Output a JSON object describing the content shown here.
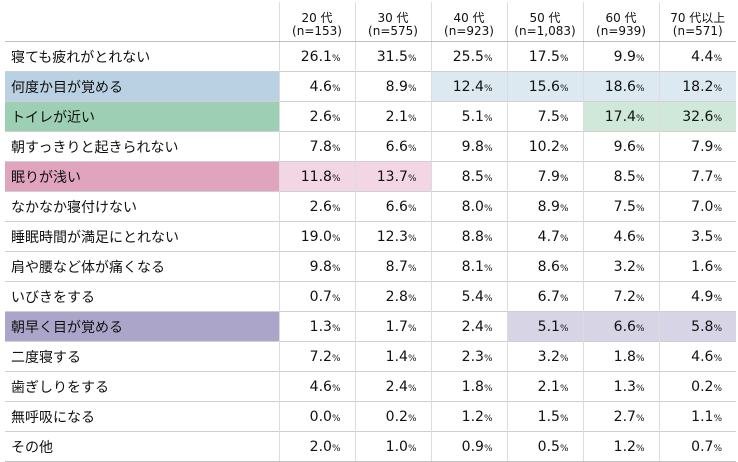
{
  "headers": [
    {
      "age": "20 代",
      "n": "(n=153)"
    },
    {
      "age": "30 代",
      "n": "(n=575)"
    },
    {
      "age": "40 代",
      "n": "(n=923)"
    },
    {
      "age": "50 代",
      "n": "(n=1,083)"
    },
    {
      "age": "60 代",
      "n": "(n=939)"
    },
    {
      "age": "70 代以上",
      "n": "(n=571)"
    }
  ],
  "rows": [
    {
      "label": "寝ても疲れがとれない",
      "values": [
        "26.1",
        "31.5",
        "25.5",
        "17.5",
        "9.9",
        "4.4"
      ]
    },
    {
      "label": "何度か目が覚める",
      "values": [
        "4.6",
        "8.9",
        "12.4",
        "15.6",
        "18.6",
        "18.2"
      ]
    },
    {
      "label": "トイレが近い",
      "values": [
        "2.6",
        "2.1",
        "5.1",
        "7.5",
        "17.4",
        "32.6"
      ]
    },
    {
      "label": "朝すっきりと起きられない",
      "values": [
        "7.8",
        "6.6",
        "9.8",
        "10.2",
        "9.6",
        "7.9"
      ]
    },
    {
      "label": "眠りが浅い",
      "values": [
        "11.8",
        "13.7",
        "8.5",
        "7.9",
        "8.5",
        "7.7"
      ]
    },
    {
      "label": "なかなか寝付けない",
      "values": [
        "2.6",
        "6.6",
        "8.0",
        "8.9",
        "7.5",
        "7.0"
      ]
    },
    {
      "label": "睡眠時間が満足にとれない",
      "values": [
        "19.0",
        "12.3",
        "8.8",
        "4.7",
        "4.6",
        "3.5"
      ]
    },
    {
      "label": "肩や腰など体が痛くなる",
      "values": [
        "9.8",
        "8.7",
        "8.1",
        "8.6",
        "3.2",
        "1.6"
      ]
    },
    {
      "label": "いびきをする",
      "values": [
        "0.7",
        "2.8",
        "5.4",
        "6.7",
        "7.2",
        "4.9"
      ]
    },
    {
      "label": "朝早く目が覚める",
      "values": [
        "1.3",
        "1.7",
        "2.4",
        "5.1",
        "6.6",
        "5.8"
      ]
    },
    {
      "label": "二度寝する",
      "values": [
        "7.2",
        "1.4",
        "2.3",
        "3.2",
        "1.8",
        "4.6"
      ]
    },
    {
      "label": "歯ぎしりをする",
      "values": [
        "4.6",
        "2.4",
        "1.8",
        "2.1",
        "1.3",
        "0.2"
      ]
    },
    {
      "label": "無呼吸になる",
      "values": [
        "0.0",
        "0.2",
        "1.2",
        "1.5",
        "2.7",
        "1.1"
      ]
    },
    {
      "label": "その他",
      "values": [
        "2.0",
        "1.0",
        "0.9",
        "0.5",
        "1.2",
        "0.7"
      ]
    }
  ],
  "unit": "%",
  "highlight_colors": {
    "blue": "#b9d1e2",
    "green": "#9ccfb3",
    "pink": "#e0a4bf",
    "purple": "#aba6c9"
  }
}
